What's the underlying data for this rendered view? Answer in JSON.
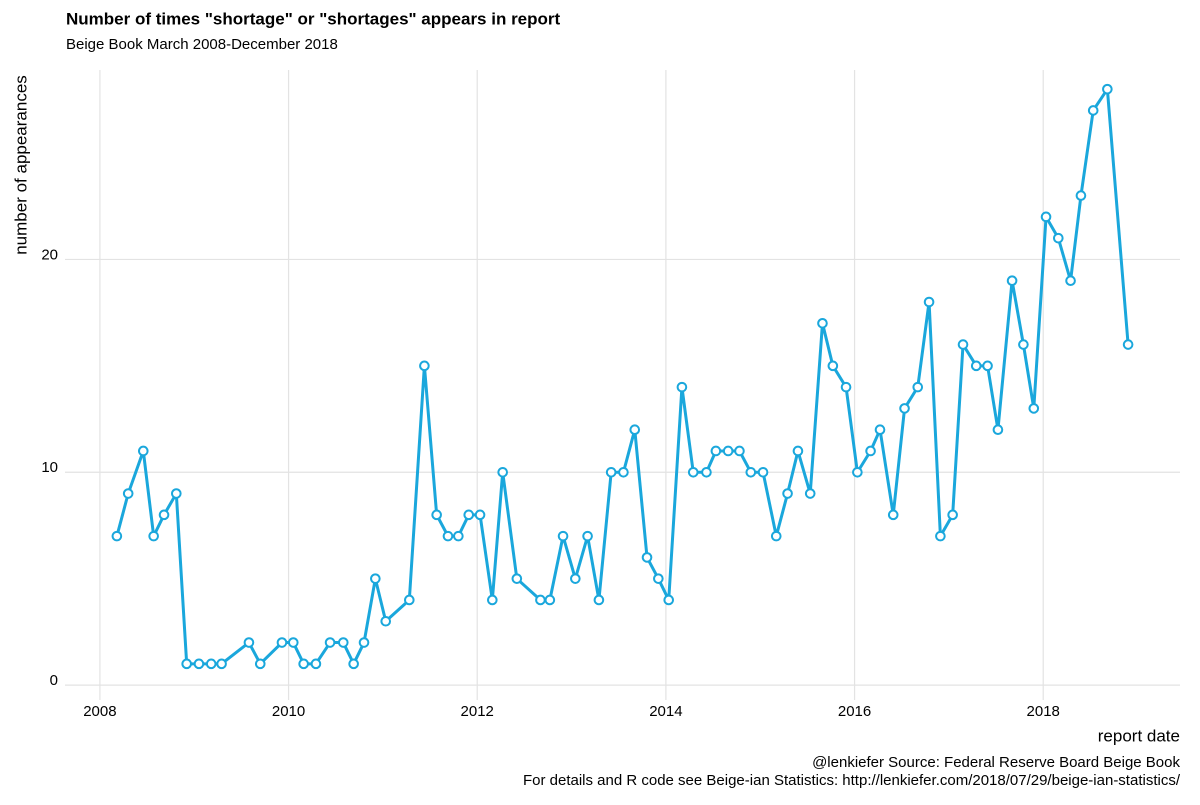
{
  "chart_data": {
    "type": "line",
    "title": "Number of times \"shortage\" or \"shortages\" appears in report",
    "subtitle": "Beige Book March 2008-December 2018",
    "x_label": "report date",
    "y_label": "number of appearances",
    "caption": [
      "@lenkiefer Source: Federal Reserve Board Beige Book",
      "For details and R code see Beige-ian Statistics: http://lenkiefer.com/2018/07/29/beige-ian-statistics/"
    ],
    "color": "#1aa7dc",
    "x": [
      2008.18,
      2008.3,
      2008.46,
      2008.57,
      2008.68,
      2008.81,
      2008.92,
      2009.05,
      2009.18,
      2009.29,
      2009.58,
      2009.7,
      2009.93,
      2010.05,
      2010.16,
      2010.29,
      2010.44,
      2010.58,
      2010.69,
      2010.8,
      2010.92,
      2011.03,
      2011.28,
      2011.44,
      2011.57,
      2011.69,
      2011.8,
      2011.91,
      2012.03,
      2012.16,
      2012.27,
      2012.42,
      2012.67,
      2012.77,
      2012.91,
      2013.04,
      2013.17,
      2013.29,
      2013.42,
      2013.55,
      2013.67,
      2013.8,
      2013.92,
      2014.03,
      2014.17,
      2014.29,
      2014.43,
      2014.53,
      2014.66,
      2014.78,
      2014.9,
      2015.03,
      2015.17,
      2015.29,
      2015.4,
      2015.53,
      2015.66,
      2015.77,
      2015.91,
      2016.03,
      2016.17,
      2016.27,
      2016.41,
      2016.53,
      2016.67,
      2016.79,
      2016.91,
      2017.04,
      2017.15,
      2017.29,
      2017.41,
      2017.52,
      2017.67,
      2017.79,
      2017.9,
      2018.03,
      2018.16,
      2018.29,
      2018.4,
      2018.53,
      2018.68,
      2018.9
    ],
    "values": [
      7,
      9,
      11,
      7,
      8,
      9,
      1,
      1,
      1,
      1,
      2,
      1,
      2,
      2,
      1,
      1,
      2,
      2,
      1,
      2,
      5,
      3,
      4,
      15,
      8,
      7,
      7,
      8,
      8,
      4,
      10,
      5,
      4,
      4,
      7,
      5,
      7,
      4,
      10,
      10,
      12,
      6,
      5,
      4,
      14,
      10,
      10,
      11,
      11,
      11,
      10,
      10,
      7,
      9,
      11,
      9,
      17,
      15,
      14,
      10,
      11,
      12,
      8,
      13,
      14,
      18,
      7,
      8,
      16,
      15,
      15,
      12,
      19,
      16,
      13,
      22,
      21,
      19,
      23,
      27,
      28,
      16
    ],
    "xlim": [
      2007.63,
      2019.45
    ],
    "xticks": [
      2008,
      2010,
      2012,
      2014,
      2016,
      2018
    ],
    "ylim": [
      -0.7,
      28.9
    ],
    "yticks": [
      0,
      10,
      20
    ],
    "grid": true
  }
}
